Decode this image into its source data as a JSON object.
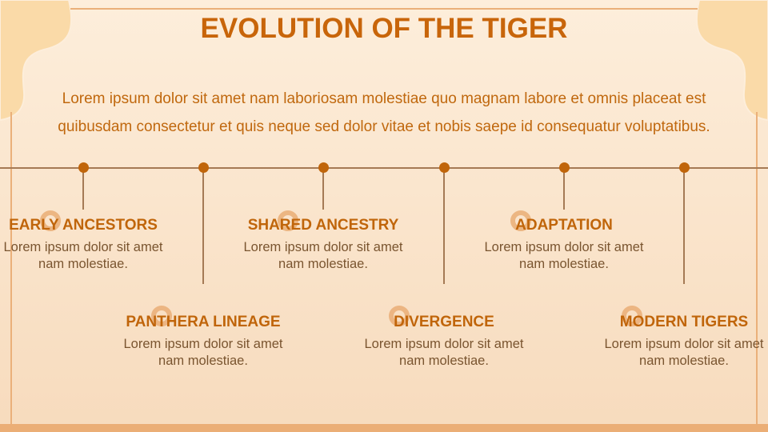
{
  "title": "EVOLUTION OF THE TIGER",
  "intro": "Lorem ipsum dolor sit amet nam laboriosam molestiae quo magnam labore et omnis placeat est quibusdam consectetur et quis neque sed dolor vitae et nobis saepe id consequatur voluptatibus.",
  "colors": {
    "accent": "#c8650a",
    "ring": "#eab07a",
    "line": "#a57a55",
    "background": "#fdeedb"
  },
  "timeline": [
    {
      "title": "EARLY ANCESTORS",
      "text": "Lorem ipsum dolor sit amet nam molestiae."
    },
    {
      "title": "PANTHERA LINEAGE",
      "text": "Lorem ipsum dolor sit amet nam molestiae."
    },
    {
      "title": "SHARED ANCESTRY",
      "text": "Lorem ipsum dolor sit amet nam molestiae."
    },
    {
      "title": "DIVERGENCE",
      "text": "Lorem ipsum dolor sit amet nam molestiae."
    },
    {
      "title": "ADAPTATION",
      "text": "Lorem ipsum dolor sit amet nam molestiae."
    },
    {
      "title": "MODERN TIGERS",
      "text": "Lorem ipsum dolor sit amet nam molestiae."
    }
  ]
}
